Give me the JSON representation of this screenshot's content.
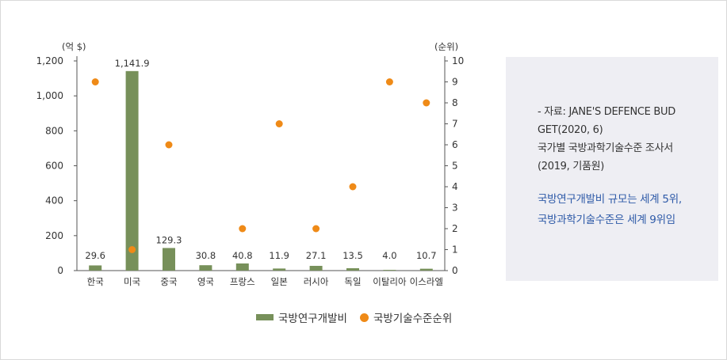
{
  "chart_data": {
    "type": "bar",
    "categories": [
      "한국",
      "미국",
      "중국",
      "영국",
      "프랑스",
      "일본",
      "러시아",
      "독일",
      "이탈리아",
      "이스라엘"
    ],
    "series": [
      {
        "name": "국방연구개발비",
        "type": "bar",
        "axis": "left",
        "color": "#77905a",
        "values": [
          29.6,
          1141.9,
          129.3,
          30.8,
          40.8,
          11.9,
          27.1,
          13.5,
          4.0,
          10.7
        ],
        "labels": [
          "29.6",
          "1,141.9",
          "129.3",
          "30.8",
          "40.8",
          "11.9",
          "27.1",
          "13.5",
          "4.0",
          "10.7"
        ]
      },
      {
        "name": "국방기술수준순위",
        "type": "scatter",
        "axis": "right",
        "color": "#ef8a17",
        "values": [
          9,
          1,
          6,
          null,
          2,
          7,
          2,
          4,
          9,
          8
        ]
      }
    ],
    "y_left": {
      "unit": "(억 $)",
      "ylim": [
        0,
        1200
      ],
      "ticks": [
        "0",
        "200",
        "400",
        "600",
        "800",
        "1,000",
        "1,200"
      ]
    },
    "y_right": {
      "unit": "(순위)",
      "ylim": [
        0,
        10
      ],
      "ticks": [
        "0",
        "1",
        "2",
        "3",
        "4",
        "5",
        "6",
        "7",
        "8",
        "9",
        "10"
      ]
    },
    "grid": false,
    "legend_position": "bottom"
  },
  "notes": {
    "source_lines": [
      "- 자료:  JANE'S DEFENCE BUD",
      "GET(2020, 6)",
      "국가별 국방과학기술수준 조사서",
      "(2019, 기품원)"
    ],
    "highlight_lines": [
      "국방연구개발비 규모는 세계 5위,",
      "국방과학기술수준은 세계 9위임"
    ]
  },
  "colors": {
    "bar": "#77905a",
    "dot": "#ef8a17",
    "highlight_text": "#2e5aa8",
    "note_bg": "#eeeef3"
  }
}
